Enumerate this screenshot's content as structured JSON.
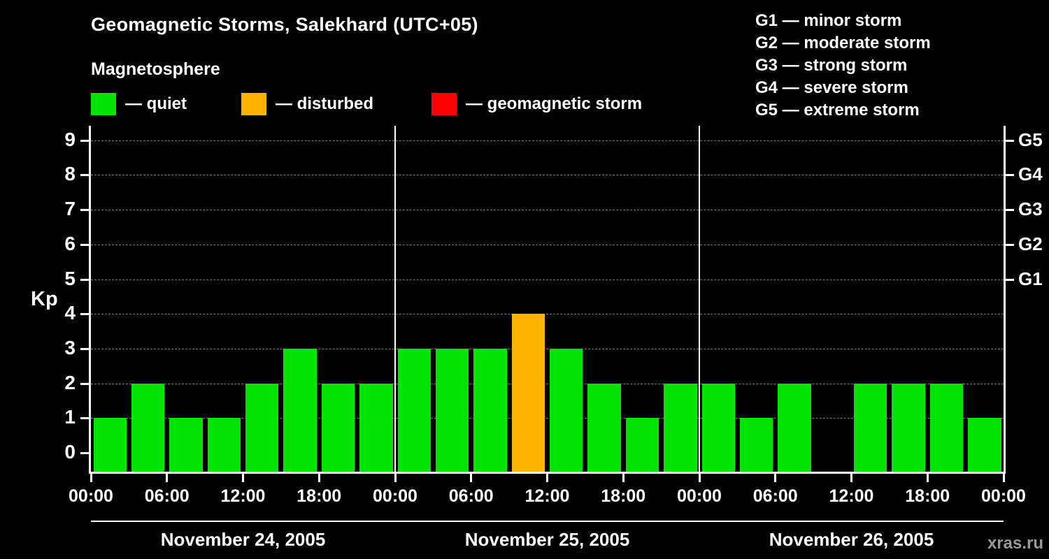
{
  "header": {
    "title": "Geomagnetic Storms, Salekhard (UTC+05)",
    "subtitle": "Magnetosphere"
  },
  "legend": {
    "items": [
      {
        "label": "— quiet",
        "color": "#00e400"
      },
      {
        "label": "— disturbed",
        "color": "#ffb400"
      },
      {
        "label": "— geomagnetic storm",
        "color": "#ff0000"
      }
    ]
  },
  "g_scale_legend": [
    "G1 — minor storm",
    "G2 — moderate storm",
    "G3 — strong storm",
    "G4 — severe storm",
    "G5 — extreme storm"
  ],
  "watermark": "xras.ru",
  "chart_data": {
    "type": "bar",
    "title": "Geomagnetic Storms, Salekhard (UTC+05)",
    "subtitle": "Magnetosphere",
    "ylabel": "Kp",
    "ylim": [
      0,
      9
    ],
    "yticks": [
      0,
      1,
      2,
      3,
      4,
      5,
      6,
      7,
      8,
      9
    ],
    "grid": "horizontal dashed at each Kp integer",
    "legend_position": "top",
    "right_axis_labels": [
      {
        "label": "G1",
        "kp": 5
      },
      {
        "label": "G2",
        "kp": 6
      },
      {
        "label": "G3",
        "kp": 7
      },
      {
        "label": "G4",
        "kp": 8
      },
      {
        "label": "G5",
        "kp": 9
      }
    ],
    "x_time_ticks": [
      "00:00",
      "06:00",
      "12:00",
      "18:00",
      "00:00",
      "06:00",
      "12:00",
      "18:00",
      "00:00",
      "06:00",
      "12:00",
      "18:00",
      "00:00"
    ],
    "days": [
      {
        "date": "November 24, 2005",
        "values": [
          1,
          2,
          1,
          1,
          2,
          3,
          2,
          2
        ]
      },
      {
        "date": "November 25, 2005",
        "values": [
          3,
          3,
          3,
          4,
          3,
          2,
          1,
          2
        ]
      },
      {
        "date": "November 26, 2005",
        "values": [
          2,
          1,
          2,
          0,
          2,
          2,
          2,
          1
        ]
      }
    ],
    "interval_hours": 3,
    "colors": {
      "quiet": "#00e400",
      "disturbed": "#ffb400",
      "storm": "#ff0000"
    },
    "thresholds": {
      "quiet_max": 3,
      "disturbed_max": 4
    }
  }
}
